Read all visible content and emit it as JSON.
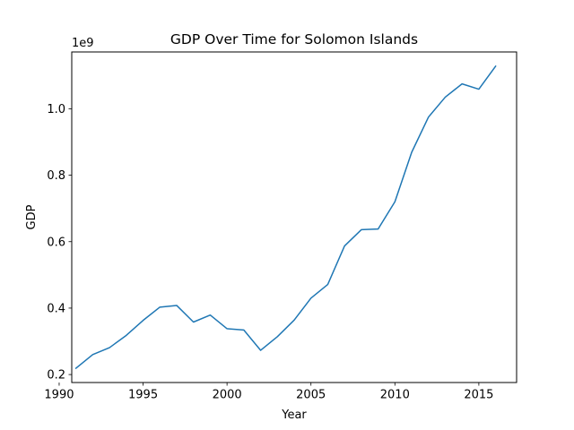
{
  "chart_data": {
    "type": "line",
    "title": "GDP Over Time for Solomon Islands",
    "xlabel": "Year",
    "ylabel": "GDP",
    "y_offset_label": "1e9",
    "y_scale": 1000000000,
    "xlim": [
      1990.75,
      2017.25
    ],
    "ylim": [
      0.176,
      1.171
    ],
    "x_ticks": [
      1990,
      1995,
      2000,
      2005,
      2010,
      2015
    ],
    "y_ticks": [
      0.2,
      0.4,
      0.6,
      0.8,
      1.0
    ],
    "y_tick_labels": [
      "0.2",
      "0.4",
      "0.6",
      "0.8",
      "1.0"
    ],
    "grid": false,
    "line_color": "#1f77b4",
    "series": [
      {
        "x": [
          1991,
          1992,
          1993,
          1994,
          1995,
          1996,
          1997,
          1998,
          1999,
          2000,
          2001,
          2002,
          2003,
          2004,
          2005,
          2006,
          2007,
          2008,
          2009,
          2010,
          2011,
          2012,
          2013,
          2014,
          2015,
          2016
        ],
        "values": [
          0.219,
          0.26,
          0.281,
          0.318,
          0.363,
          0.403,
          0.408,
          0.358,
          0.379,
          0.338,
          0.334,
          0.273,
          0.314,
          0.364,
          0.43,
          0.471,
          0.587,
          0.636,
          0.638,
          0.72,
          0.869,
          0.975,
          1.035,
          1.075,
          1.059,
          1.128
        ]
      }
    ]
  }
}
